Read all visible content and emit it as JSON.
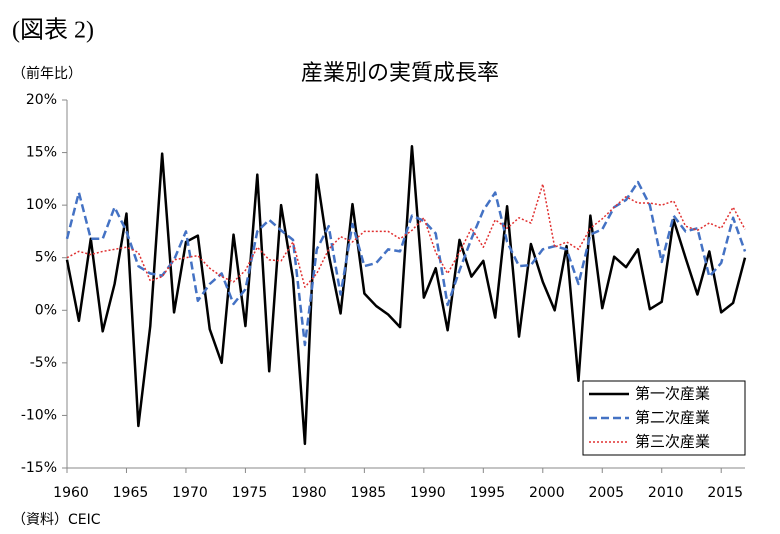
{
  "chart_data": {
    "type": "line",
    "figure_label": "(図表 2)",
    "title": "産業別の実質成長率",
    "y_label": "（前年比）",
    "source": "（資料）CEIC",
    "x": [
      1960,
      1961,
      1962,
      1963,
      1964,
      1965,
      1966,
      1967,
      1968,
      1969,
      1970,
      1971,
      1972,
      1973,
      1974,
      1975,
      1976,
      1977,
      1978,
      1979,
      1980,
      1981,
      1982,
      1983,
      1984,
      1985,
      1986,
      1987,
      1988,
      1989,
      1990,
      1991,
      1992,
      1993,
      1994,
      1995,
      1996,
      1997,
      1998,
      1999,
      2000,
      2001,
      2002,
      2003,
      2004,
      2005,
      2006,
      2007,
      2008,
      2009,
      2010,
      2011,
      2012,
      2013,
      2014,
      2015,
      2016,
      2017
    ],
    "xlim": [
      1960,
      2017
    ],
    "xticks": [
      1960,
      1965,
      1970,
      1975,
      1980,
      1985,
      1990,
      1995,
      2000,
      2005,
      2010,
      2015
    ],
    "ylim": [
      -15,
      20
    ],
    "yticks": [
      {
        "value": -15,
        "label": "-15%"
      },
      {
        "value": -10,
        "label": "-10%"
      },
      {
        "value": -5,
        "label": "-5%"
      },
      {
        "value": 0,
        "label": "0%"
      },
      {
        "value": 5,
        "label": "5%"
      },
      {
        "value": 10,
        "label": "10%"
      },
      {
        "value": 15,
        "label": "15%"
      },
      {
        "value": 20,
        "label": "20%"
      }
    ],
    "legend": "lower right",
    "series": [
      {
        "name": "第一次産業",
        "color": "#000000",
        "line_style": "solid",
        "values": [
          4.8,
          -1,
          6.8,
          -2,
          2.5,
          9.2,
          -11,
          -1.5,
          14.9,
          -0.2,
          6.5,
          7.1,
          -1.8,
          -5,
          7.2,
          -1.5,
          12.9,
          -5.8,
          10,
          3,
          -12.7,
          12.9,
          5.3,
          -0.3,
          10.1,
          1.6,
          0.4,
          -0.4,
          -1.6,
          15.6,
          1.2,
          4,
          -1.9,
          6.7,
          3.2,
          4.7,
          -0.7,
          9.9,
          -2.5,
          6.3,
          2.7,
          0,
          6.1,
          -6.7,
          9,
          0.2,
          5.1,
          4.1,
          5.8,
          0.1,
          0.8,
          8.6,
          5,
          1.5,
          5.6,
          -0.2,
          0.7,
          5
        ]
      },
      {
        "name": "第二次産業",
        "color": "#4472c4",
        "line_style": "dashed",
        "values": [
          6.8,
          11.2,
          6.8,
          6.8,
          9.8,
          7.5,
          4.2,
          3.5,
          3.3,
          4.8,
          7.5,
          0.9,
          2.5,
          3.5,
          0.6,
          2.0,
          7.5,
          8.6,
          7.6,
          6.7,
          -3.3,
          5.8,
          8,
          1.5,
          8.2,
          4.2,
          4.5,
          5.8,
          5.6,
          9,
          8.5,
          7.3,
          0.5,
          3.8,
          6.8,
          9.5,
          11.2,
          6.5,
          4.2,
          4.3,
          5.8,
          6.1,
          5.8,
          2.5,
          7.2,
          7.7,
          9.8,
          10.5,
          12.2,
          10,
          4.6,
          9,
          7.5,
          7.8,
          3.2,
          4.5,
          8.8,
          5.6
        ]
      },
      {
        "name": "第三次産業",
        "color": "#e03030",
        "line_style": "dotted",
        "values": [
          5,
          5.6,
          5.3,
          5.6,
          5.8,
          6,
          5.5,
          2.8,
          3.2,
          4.8,
          5,
          5.2,
          4,
          3.2,
          2.7,
          3.8,
          6,
          4.8,
          4.7,
          6.5,
          2.2,
          3.5,
          5.8,
          7,
          6.5,
          7.5,
          7.5,
          7.5,
          6.8,
          7.6,
          8.8,
          5.5,
          3.5,
          5.5,
          7.8,
          6,
          8.6,
          7.8,
          8.8,
          8.3,
          12,
          6,
          6.5,
          5.8,
          7.8,
          8.7,
          9.8,
          10.8,
          10.2,
          10.2,
          10,
          10.4,
          8,
          7.6,
          8.3,
          7.8,
          9.8,
          7.7
        ]
      }
    ]
  }
}
